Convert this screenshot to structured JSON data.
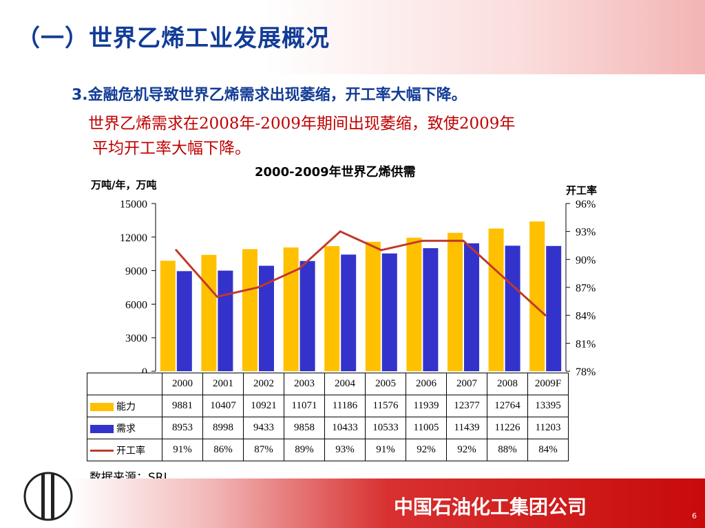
{
  "slide": {
    "title": "（一）世界乙烯工业发展概况",
    "point": "3.金融危机导致世界乙烯需求出现萎缩，开工率大幅下降。",
    "note_line1": "世界乙烯需求在2008年-2009年期间出现萎缩，致使2009年",
    "note_line2": "平均开工率大幅下降。",
    "source": "数据来源：SRI",
    "company": "中国石油化工集团公司",
    "page_number": "6"
  },
  "colors": {
    "capacity": "#ffc000",
    "demand": "#3333cc",
    "rate": "#c0392b",
    "title": "#123c96",
    "note": "#c00000"
  },
  "chart_data": {
    "type": "bar",
    "title": "2000-2009年世界乙烯供需",
    "ylabel": "万吨/年，万吨",
    "y2label": "开工率",
    "ylim": [
      0,
      15000
    ],
    "y2lim": [
      78,
      96
    ],
    "yticks": [
      "0",
      "3000",
      "6000",
      "9000",
      "12000",
      "15000"
    ],
    "y2ticks": [
      "78%",
      "81%",
      "84%",
      "87%",
      "90%",
      "93%",
      "96%"
    ],
    "categories": [
      "2000",
      "2001",
      "2002",
      "2003",
      "2004",
      "2005",
      "2006",
      "2007",
      "2008",
      "2009F"
    ],
    "series": [
      {
        "name": "能力",
        "kind": "bar",
        "values": [
          9881,
          10407,
          10921,
          11071,
          11186,
          11576,
          11939,
          12377,
          12764,
          13395
        ]
      },
      {
        "name": "需求",
        "kind": "bar",
        "values": [
          8953,
          8998,
          9433,
          9858,
          10433,
          10533,
          11005,
          11439,
          11226,
          11203
        ]
      },
      {
        "name": "开工率",
        "kind": "line",
        "axis": "right",
        "values": [
          91,
          86,
          87,
          89,
          93,
          91,
          92,
          92,
          88,
          84
        ]
      }
    ],
    "table_rows": [
      [
        "9881",
        "10407",
        "10921",
        "11071",
        "11186",
        "11576",
        "11939",
        "12377",
        "12764",
        "13395"
      ],
      [
        "8953",
        "8998",
        "9433",
        "9858",
        "10433",
        "10533",
        "11005",
        "11439",
        "11226",
        "11203"
      ],
      [
        "91%",
        "86%",
        "87%",
        "89%",
        "93%",
        "91%",
        "92%",
        "92%",
        "88%",
        "84%"
      ]
    ]
  }
}
